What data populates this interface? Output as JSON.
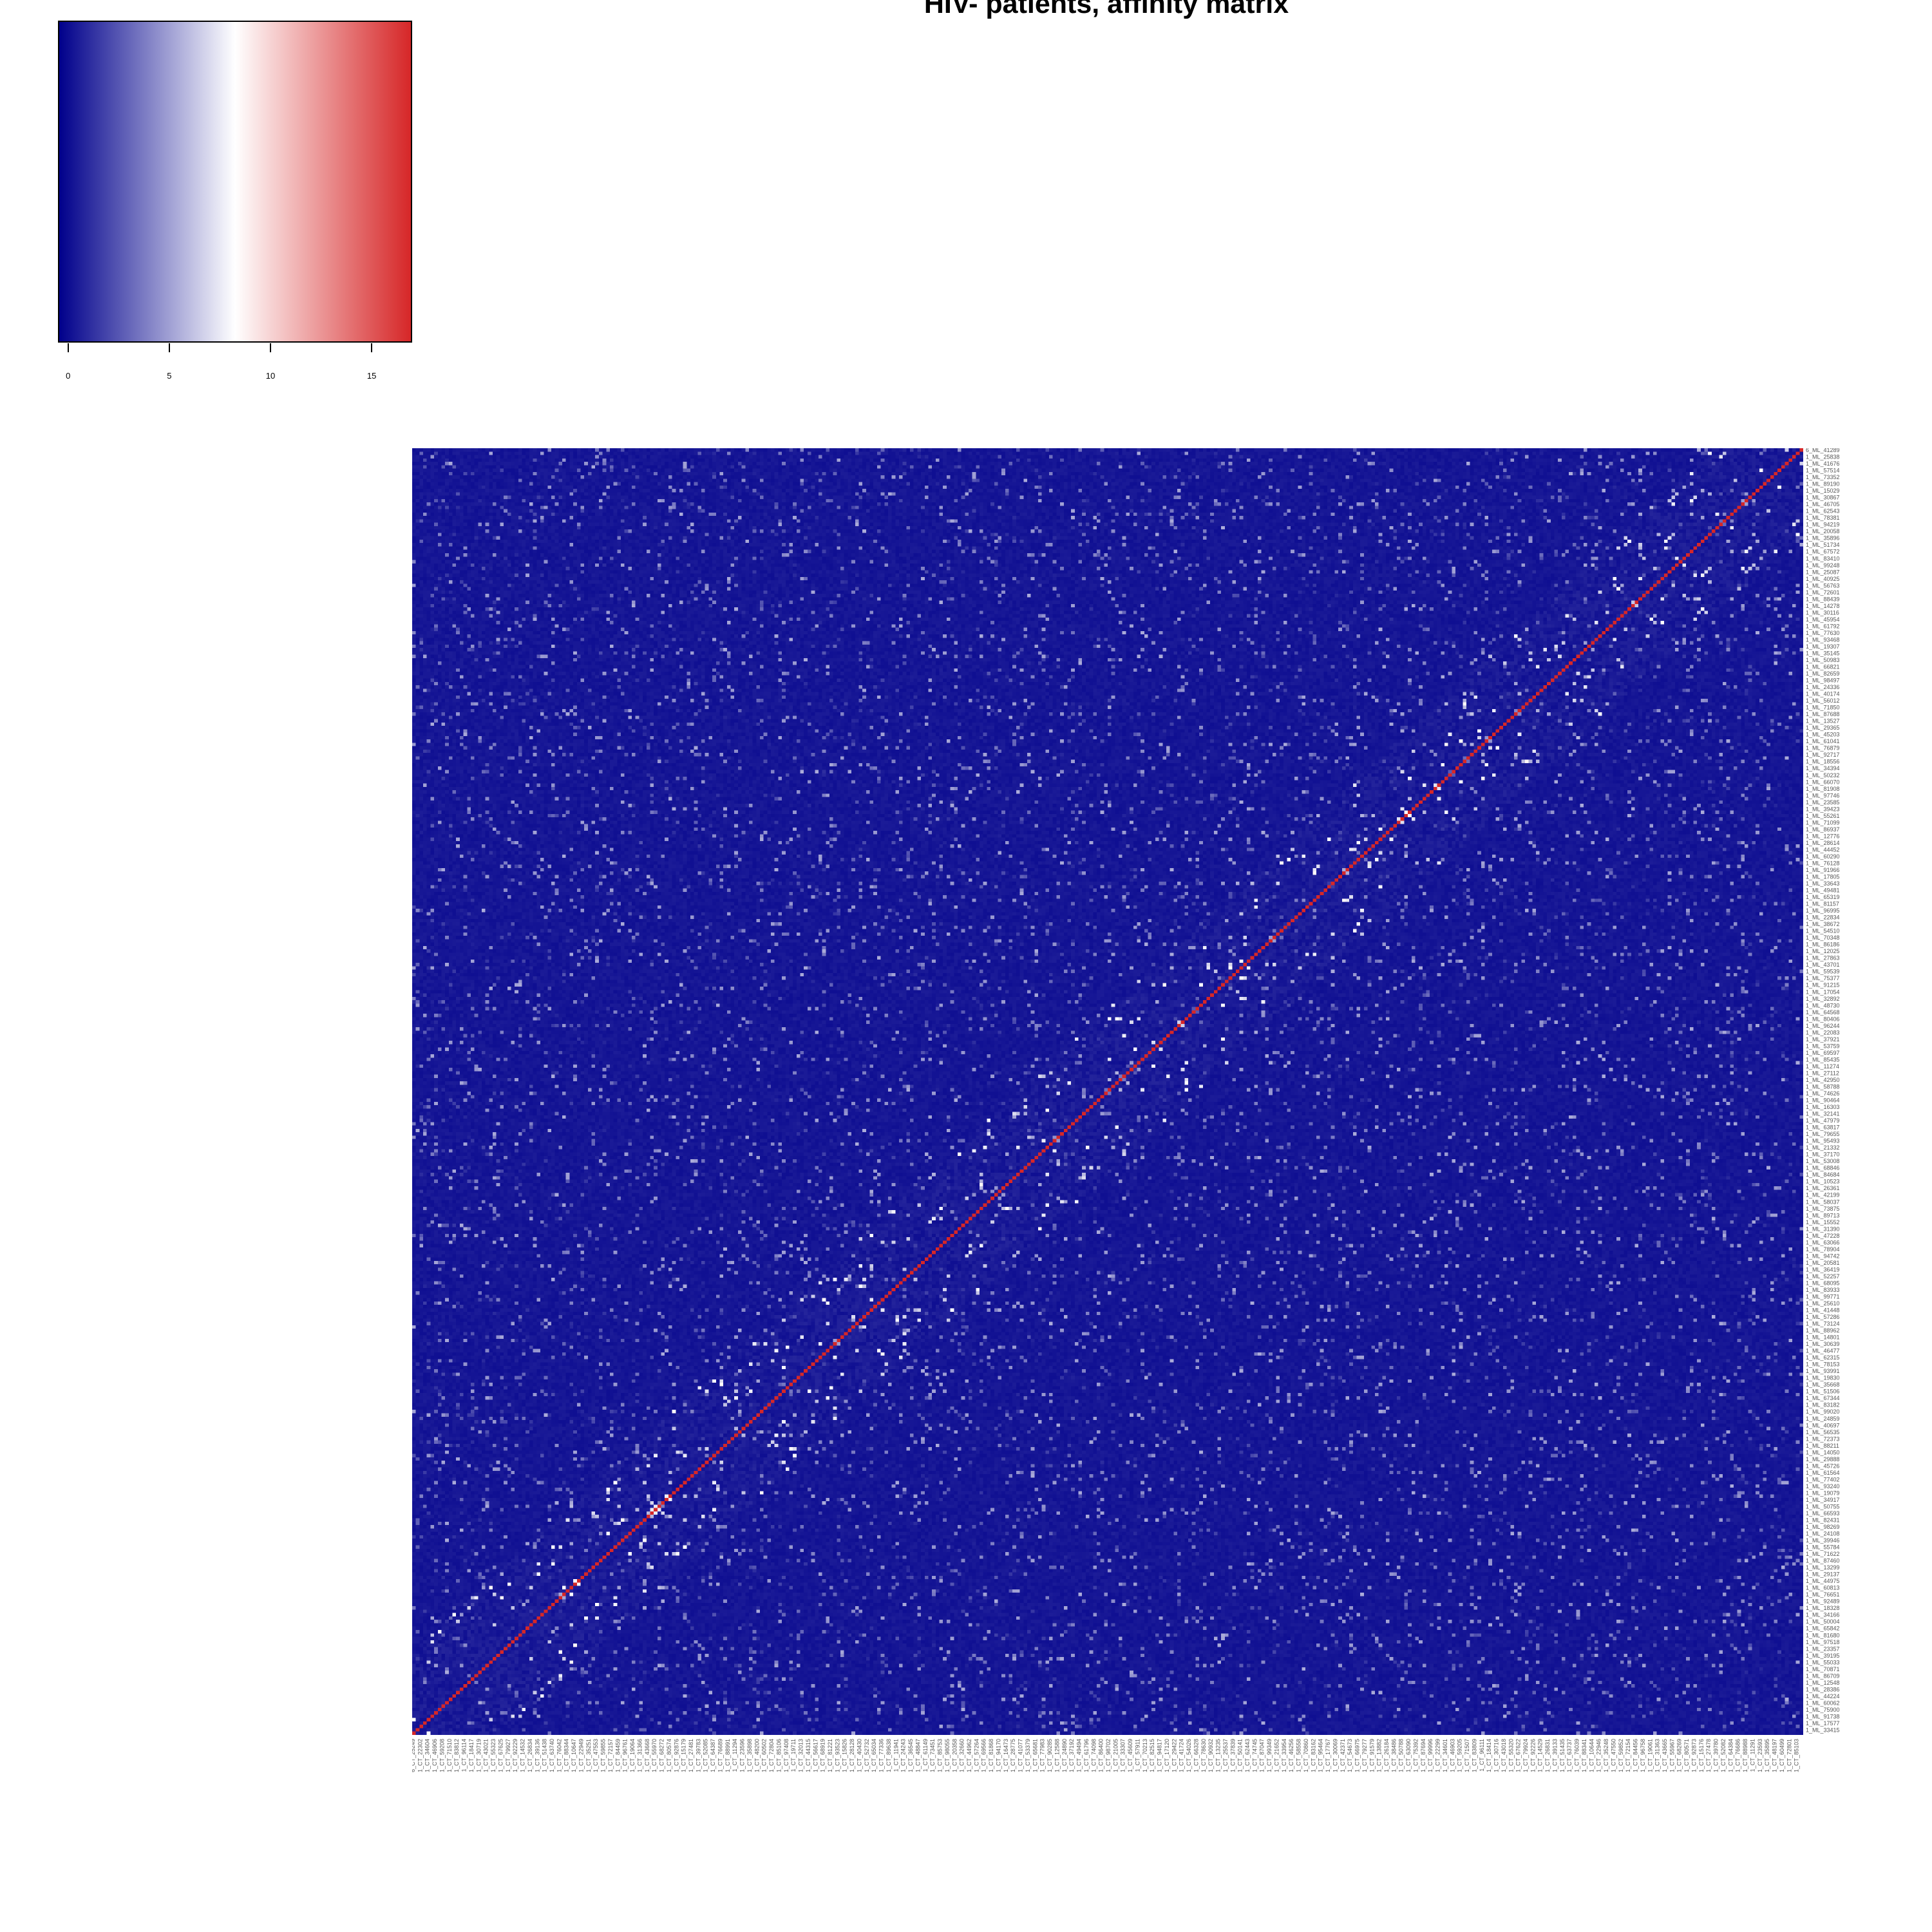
{
  "chart_data": {
    "type": "heatmap",
    "title": "HIV- patients, affinity matrix",
    "n": 380,
    "color_key": {
      "colors": [
        "#00008B",
        "#FFFFFF",
        "#D62728"
      ],
      "range": [
        -0.5,
        17
      ],
      "ticks": [
        "0",
        "5",
        "10",
        "15"
      ],
      "tick_values": [
        0,
        5,
        10,
        15
      ]
    },
    "diagonal_value": 17,
    "off_diagonal_typical": 0.5,
    "off_diagonal_max": 5,
    "corner_row_label_top": "6_ML_41289",
    "corner_col_label_first": "6_CT_25249"
  }
}
